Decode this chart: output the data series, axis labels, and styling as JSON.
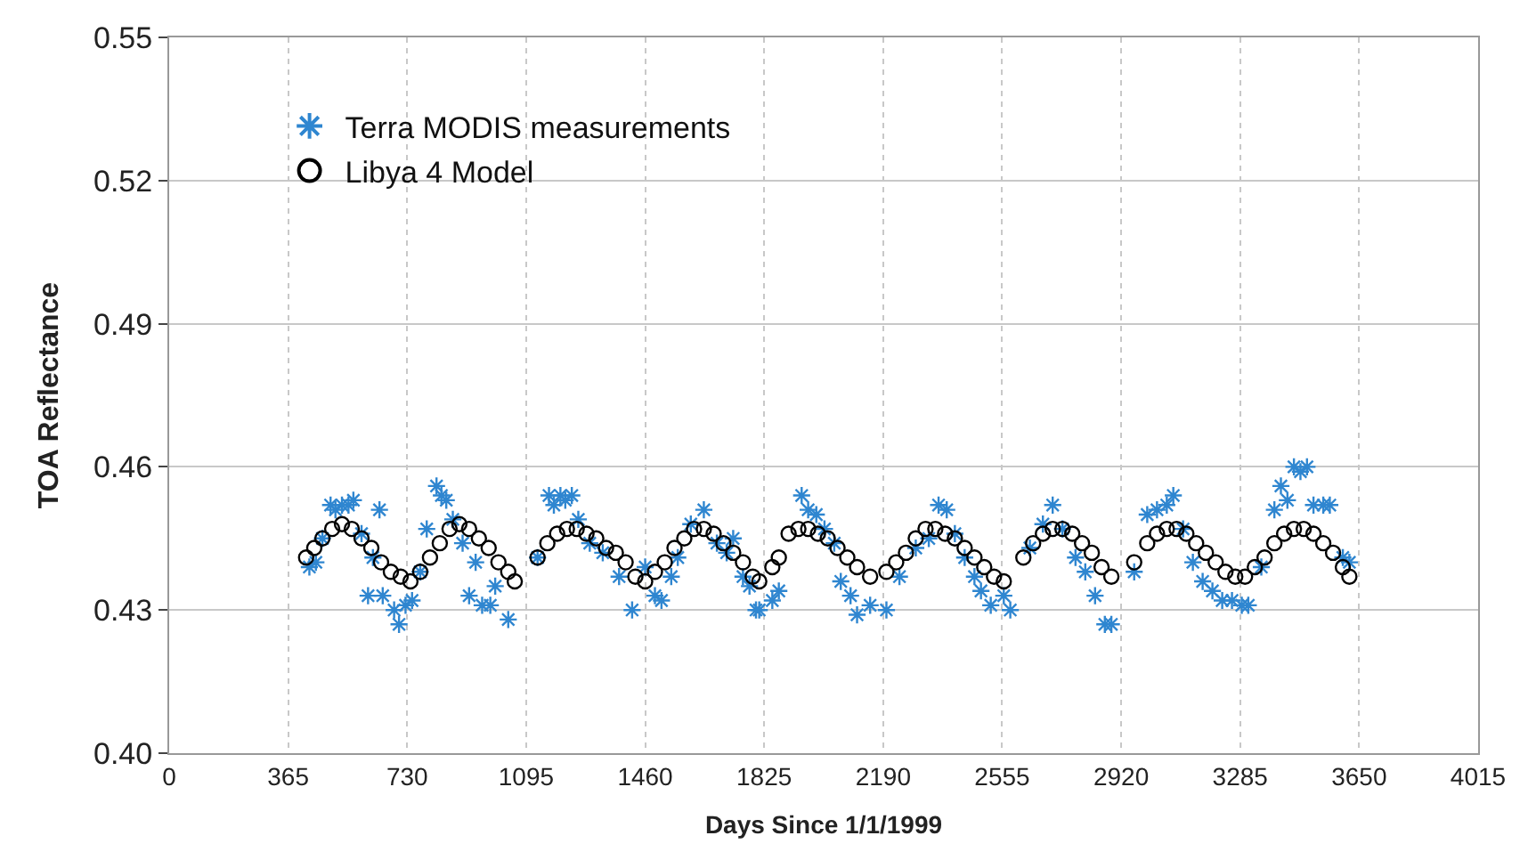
{
  "chart_data": {
    "type": "scatter",
    "xlabel": "Days Since 1/1/1999",
    "ylabel": "TOA Reflectance",
    "xlim": [
      0,
      4015
    ],
    "xticks": [
      0,
      365,
      730,
      1095,
      1460,
      1825,
      2190,
      2555,
      2920,
      3285,
      3650,
      4015
    ],
    "ylim": [
      0.4,
      0.55
    ],
    "yticks": [
      {
        "value": 0.4,
        "label": "0.40"
      },
      {
        "value": 0.43,
        "label": "0.43"
      },
      {
        "value": 0.46,
        "label": "0.46"
      },
      {
        "value": 0.49,
        "label": "0.49"
      },
      {
        "value": 0.52,
        "label": "0.52"
      },
      {
        "value": 0.55,
        "label": "0.55"
      }
    ],
    "grid": true,
    "legend": "top left",
    "series": [
      {
        "name": "Terra MODIS measurements",
        "color": "#2f86d0",
        "marker": "cross",
        "x": [
          430,
          450,
          470,
          495,
          510,
          530,
          550,
          565,
          590,
          610,
          625,
          645,
          655,
          690,
          705,
          725,
          745,
          770,
          790,
          820,
          835,
          850,
          870,
          900,
          920,
          940,
          960,
          985,
          1000,
          1040,
          1130,
          1165,
          1180,
          1200,
          1215,
          1235,
          1255,
          1290,
          1330,
          1380,
          1420,
          1460,
          1490,
          1510,
          1540,
          1560,
          1600,
          1640,
          1680,
          1710,
          1730,
          1760,
          1780,
          1800,
          1810,
          1850,
          1870,
          1940,
          1960,
          1985,
          2010,
          2040,
          2060,
          2090,
          2110,
          2150,
          2200,
          2240,
          2290,
          2330,
          2360,
          2385,
          2410,
          2440,
          2470,
          2490,
          2520,
          2560,
          2580,
          2640,
          2680,
          2710,
          2740,
          2780,
          2810,
          2840,
          2870,
          2890,
          2960,
          3000,
          3030,
          3060,
          3080,
          3110,
          3140,
          3170,
          3200,
          3230,
          3260,
          3290,
          3310,
          3350,
          3390,
          3410,
          3430,
          3450,
          3470,
          3490,
          3510,
          3540,
          3560,
          3600,
          3620
        ],
        "values": [
          0.439,
          0.44,
          0.445,
          0.452,
          0.451,
          0.452,
          0.452,
          0.453,
          0.446,
          0.433,
          0.441,
          0.451,
          0.433,
          0.43,
          0.427,
          0.431,
          0.432,
          0.438,
          0.447,
          0.456,
          0.454,
          0.453,
          0.449,
          0.444,
          0.433,
          0.44,
          0.431,
          0.431,
          0.435,
          0.428,
          0.441,
          0.454,
          0.452,
          0.454,
          0.453,
          0.454,
          0.449,
          0.444,
          0.442,
          0.437,
          0.43,
          0.439,
          0.433,
          0.432,
          0.437,
          0.441,
          0.448,
          0.451,
          0.444,
          0.442,
          0.445,
          0.437,
          0.435,
          0.43,
          0.43,
          0.432,
          0.434,
          0.454,
          0.451,
          0.45,
          0.447,
          0.444,
          0.436,
          0.433,
          0.429,
          0.431,
          0.43,
          0.437,
          0.443,
          0.445,
          0.452,
          0.451,
          0.446,
          0.441,
          0.437,
          0.434,
          0.431,
          0.433,
          0.43,
          0.443,
          0.448,
          0.452,
          0.447,
          0.441,
          0.438,
          0.433,
          0.427,
          0.427,
          0.438,
          0.45,
          0.451,
          0.452,
          0.454,
          0.447,
          0.44,
          0.436,
          0.434,
          0.432,
          0.432,
          0.431,
          0.431,
          0.439,
          0.451,
          0.456,
          0.453,
          0.46,
          0.459,
          0.46,
          0.452,
          0.452,
          0.452,
          0.441,
          0.44
        ]
      },
      {
        "name": "Libya 4 Model",
        "color": "#000000",
        "marker": "circle",
        "x": [
          420,
          445,
          470,
          500,
          530,
          560,
          590,
          620,
          650,
          680,
          710,
          740,
          770,
          800,
          830,
          860,
          890,
          920,
          950,
          980,
          1010,
          1040,
          1060,
          1130,
          1160,
          1190,
          1220,
          1250,
          1280,
          1310,
          1340,
          1370,
          1400,
          1430,
          1460,
          1490,
          1520,
          1550,
          1580,
          1610,
          1640,
          1670,
          1700,
          1730,
          1760,
          1790,
          1810,
          1850,
          1870,
          1900,
          1930,
          1960,
          1990,
          2020,
          2050,
          2080,
          2110,
          2150,
          2200,
          2230,
          2260,
          2290,
          2320,
          2350,
          2380,
          2410,
          2440,
          2470,
          2500,
          2530,
          2560,
          2620,
          2650,
          2680,
          2710,
          2740,
          2770,
          2800,
          2830,
          2860,
          2890,
          2960,
          3000,
          3030,
          3060,
          3090,
          3120,
          3150,
          3180,
          3210,
          3240,
          3270,
          3300,
          3330,
          3360,
          3390,
          3420,
          3450,
          3480,
          3510,
          3540,
          3570,
          3600,
          3620
        ],
        "values": [
          0.441,
          0.443,
          0.445,
          0.447,
          0.448,
          0.447,
          0.445,
          0.443,
          0.44,
          0.438,
          0.437,
          0.436,
          0.438,
          0.441,
          0.444,
          0.447,
          0.448,
          0.447,
          0.445,
          0.443,
          0.44,
          0.438,
          0.436,
          0.441,
          0.444,
          0.446,
          0.447,
          0.447,
          0.446,
          0.445,
          0.443,
          0.442,
          0.44,
          0.437,
          0.436,
          0.438,
          0.44,
          0.443,
          0.445,
          0.447,
          0.447,
          0.446,
          0.444,
          0.442,
          0.44,
          0.437,
          0.436,
          0.439,
          0.441,
          0.446,
          0.447,
          0.447,
          0.446,
          0.445,
          0.443,
          0.441,
          0.439,
          0.437,
          0.438,
          0.44,
          0.442,
          0.445,
          0.447,
          0.447,
          0.446,
          0.445,
          0.443,
          0.441,
          0.439,
          0.437,
          0.436,
          0.441,
          0.444,
          0.446,
          0.447,
          0.447,
          0.446,
          0.444,
          0.442,
          0.439,
          0.437,
          0.44,
          0.444,
          0.446,
          0.447,
          0.447,
          0.446,
          0.444,
          0.442,
          0.44,
          0.438,
          0.437,
          0.437,
          0.439,
          0.441,
          0.444,
          0.446,
          0.447,
          0.447,
          0.446,
          0.444,
          0.442,
          0.439,
          0.437
        ]
      }
    ]
  }
}
